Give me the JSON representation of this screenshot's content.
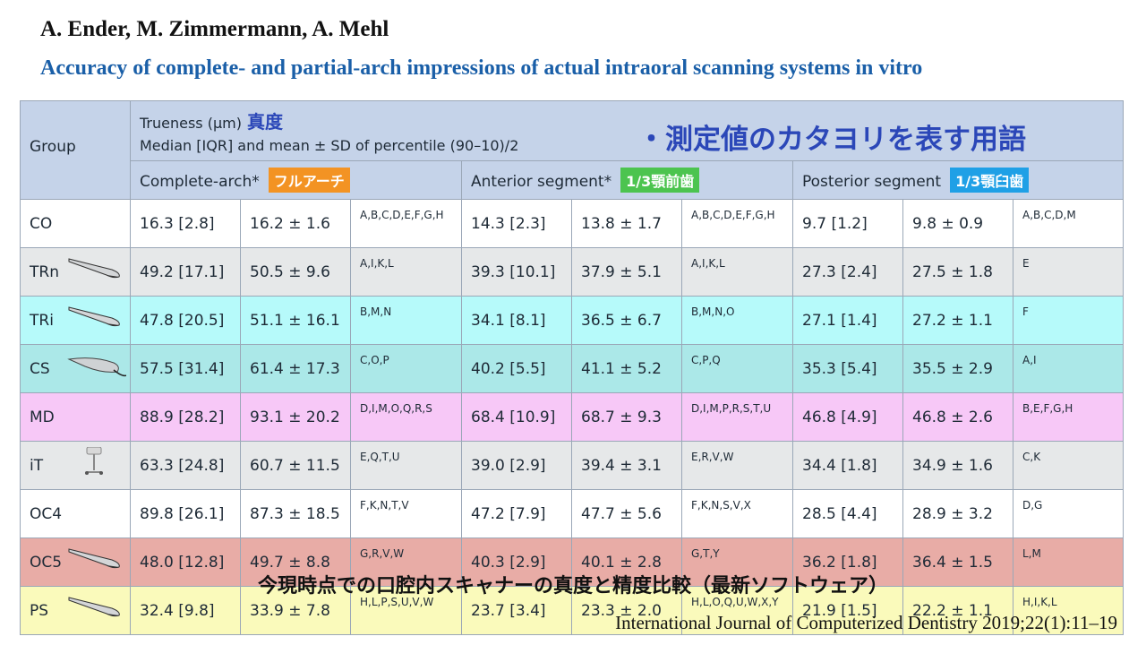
{
  "authors": "A. Ender, M. Zimmermann, A. Mehl",
  "title": "Accuracy of complete- and partial-arch impressions of actual intraoral scanning systems in vitro",
  "header": {
    "group": "Group",
    "trueness_line1": "Trueness (µm)",
    "trueness_jp": "真度",
    "trueness_line2": "Median [IQR] and mean ± SD of percentile (90–10)/2",
    "bullet_note": "・測定値のカタヨリを表す用語",
    "complete_arch": "Complete-arch*",
    "complete_arch_tag": "フルアーチ",
    "anterior": "Anterior segment*",
    "anterior_tag": "1/3顎前歯",
    "posterior": "Posterior segment",
    "posterior_tag": "1/3顎臼歯"
  },
  "rows": [
    {
      "group": "CO",
      "c_med": "16.3 [2.8]",
      "c_mean": "16.2 ± 1.6",
      "c_let": "A,B,C,D,E,F,G,H",
      "a_med": "14.3 [2.3]",
      "a_mean": "13.8 ± 1.7",
      "a_let": "A,B,C,D,E,F,G,H",
      "p_med": "9.7 [1.2]",
      "p_mean": "9.8 ± 0.9",
      "p_let": "A,B,C,D,M"
    },
    {
      "group": "TRn",
      "c_med": "49.2 [17.1]",
      "c_mean": "50.5 ± 9.6",
      "c_let": "A,I,K,L",
      "a_med": "39.3 [10.1]",
      "a_mean": "37.9 ± 5.1",
      "a_let": "A,I,K,L",
      "p_med": "27.3 [2.4]",
      "p_mean": "27.5 ± 1.8",
      "p_let": "E"
    },
    {
      "group": "TRi",
      "c_med": "47.8 [20.5]",
      "c_mean": "51.1 ± 16.1",
      "c_let": "B,M,N",
      "a_med": "34.1 [8.1]",
      "a_mean": "36.5 ± 6.7",
      "a_let": "B,M,N,O",
      "p_med": "27.1 [1.4]",
      "p_mean": "27.2 ± 1.1",
      "p_let": "F"
    },
    {
      "group": "CS",
      "c_med": "57.5 [31.4]",
      "c_mean": "61.4 ± 17.3",
      "c_let": "C,O,P",
      "a_med": "40.2 [5.5]",
      "a_mean": "41.1 ± 5.2",
      "a_let": "C,P,Q",
      "p_med": "35.3 [5.4]",
      "p_mean": "35.5 ± 2.9",
      "p_let": "A,I"
    },
    {
      "group": "MD",
      "c_med": "88.9 [28.2]",
      "c_mean": "93.1 ± 20.2",
      "c_let": "D,I,M,O,Q,R,S",
      "a_med": "68.4 [10.9]",
      "a_mean": "68.7 ± 9.3",
      "a_let": "D,I,M,P,R,S,T,U",
      "p_med": "46.8 [4.9]",
      "p_mean": "46.8 ± 2.6",
      "p_let": "B,E,F,G,H"
    },
    {
      "group": "iT",
      "c_med": "63.3 [24.8]",
      "c_mean": "60.7 ± 11.5",
      "c_let": "E,Q,T,U",
      "a_med": "39.0 [2.9]",
      "a_mean": "39.4 ± 3.1",
      "a_let": "E,R,V,W",
      "p_med": "34.4 [1.8]",
      "p_mean": "34.9 ± 1.6",
      "p_let": "C,K"
    },
    {
      "group": "OC4",
      "c_med": "89.8 [26.1]",
      "c_mean": "87.3 ± 18.5",
      "c_let": "F,K,N,T,V",
      "a_med": "47.2 [7.9]",
      "a_mean": "47.7 ± 5.6",
      "a_let": "F,K,N,S,V,X",
      "p_med": "28.5 [4.4]",
      "p_mean": "28.9 ± 3.2",
      "p_let": "D,G"
    },
    {
      "group": "OC5",
      "c_med": "48.0 [12.8]",
      "c_mean": "49.7 ± 8.8",
      "c_let": "G,R,V,W",
      "a_med": "40.3 [2.9]",
      "a_mean": "40.1 ± 2.8",
      "a_let": "G,T,Y",
      "p_med": "36.2 [1.8]",
      "p_mean": "36.4 ± 1.5",
      "p_let": "L,M"
    },
    {
      "group": "PS",
      "c_med": "32.4 [9.8]",
      "c_mean": "33.9 ± 7.8",
      "c_let": "H,L,P,S,U,V,W",
      "a_med": "23.7 [3.4]",
      "a_mean": "23.3 ± 2.0",
      "a_let": "H,L,O,Q,U,W,X,Y",
      "p_med": "21.9 [1.5]",
      "p_mean": "22.2 ± 1.1",
      "p_let": "H,I,K,L"
    }
  ],
  "caption_jp": "今現時点での口腔内スキャナーの真度と精度比較（最新ソフトウェア）",
  "journal": "International Journal of Computerized Dentistry 2019;22(1):11–19",
  "colors": {
    "title": "#1a5fa8",
    "header_bg": "#c5d3e9",
    "tag_orange": "#f39323",
    "tag_green": "#4cc44f",
    "tag_blue": "#1fa0e6"
  }
}
